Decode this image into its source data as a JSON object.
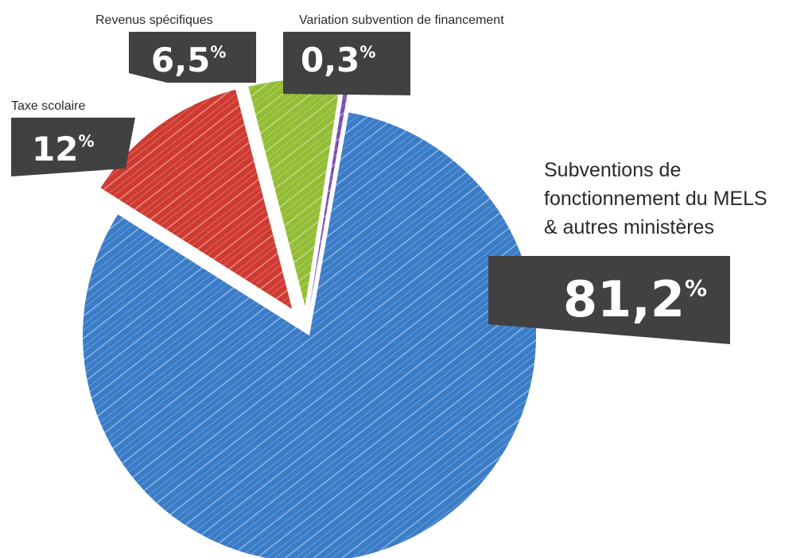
{
  "chart_data": {
    "type": "pie",
    "title": "",
    "slices": [
      {
        "label_lines": [
          "Subventions de",
          "fonctionnement du MELS",
          "& autres ministères"
        ],
        "value": 81.2,
        "value_text": "81,2",
        "unit": "%",
        "color": "#3a7cc7"
      },
      {
        "label_lines": [
          "Taxe scolaire"
        ],
        "value": 12,
        "value_text": "12",
        "unit": "%",
        "color": "#cf3a30"
      },
      {
        "label_lines": [
          "Revenus spécifiques"
        ],
        "value": 6.5,
        "value_text": "6,5",
        "unit": "%",
        "color": "#93bd35"
      },
      {
        "label_lines": [
          "Variation subvention de financement"
        ],
        "value": 0.3,
        "value_text": "0,3",
        "unit": "%",
        "color": "#7b4db0"
      }
    ],
    "legend": "none",
    "style": "hand-drawn hatched slices, exploded, dark label boxes"
  }
}
